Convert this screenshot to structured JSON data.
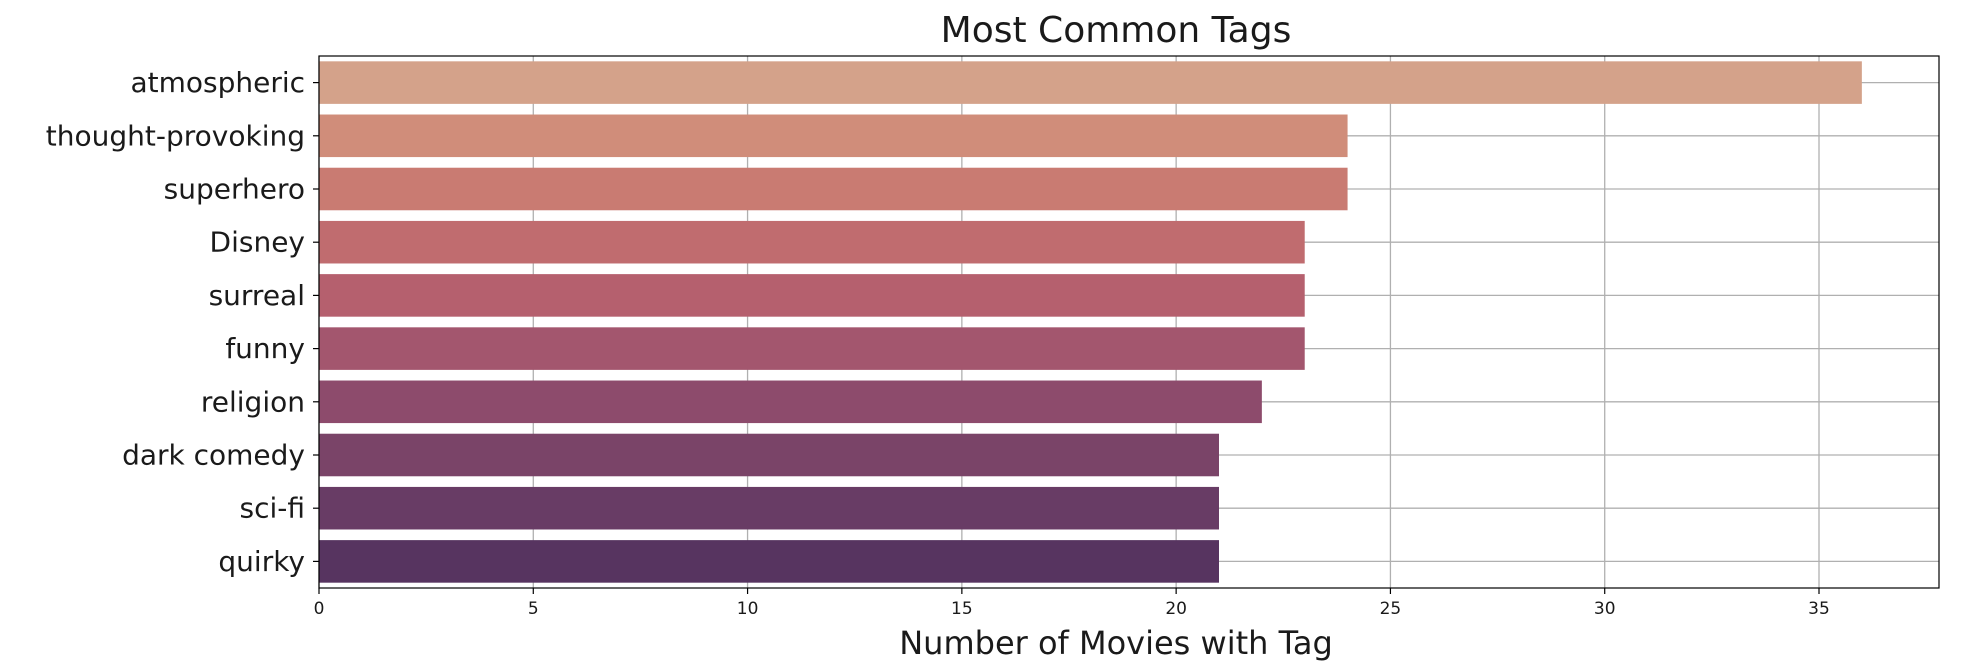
{
  "chart_data": {
    "type": "bar",
    "orientation": "horizontal",
    "title": "Most Common Tags",
    "xlabel": "Number of Movies with Tag",
    "ylabel": "",
    "categories": [
      "atmospheric",
      "thought-provoking",
      "superhero",
      "Disney",
      "surreal",
      "funny",
      "religion",
      "dark comedy",
      "sci-fi",
      "quirky"
    ],
    "values": [
      36,
      24,
      24,
      23,
      23,
      23,
      22,
      21,
      21,
      21
    ],
    "colors": [
      "#d4a28a",
      "#d08d7a",
      "#c97b72",
      "#c06c6f",
      "#b5606e",
      "#a3566e",
      "#8d4b6c",
      "#7a4468",
      "#683c65",
      "#573460"
    ],
    "xlim": [
      0,
      37.8
    ],
    "xticks": [
      "0",
      "5",
      "10",
      "15",
      "20",
      "25",
      "30",
      "35"
    ],
    "grid": true,
    "legend": "none"
  }
}
